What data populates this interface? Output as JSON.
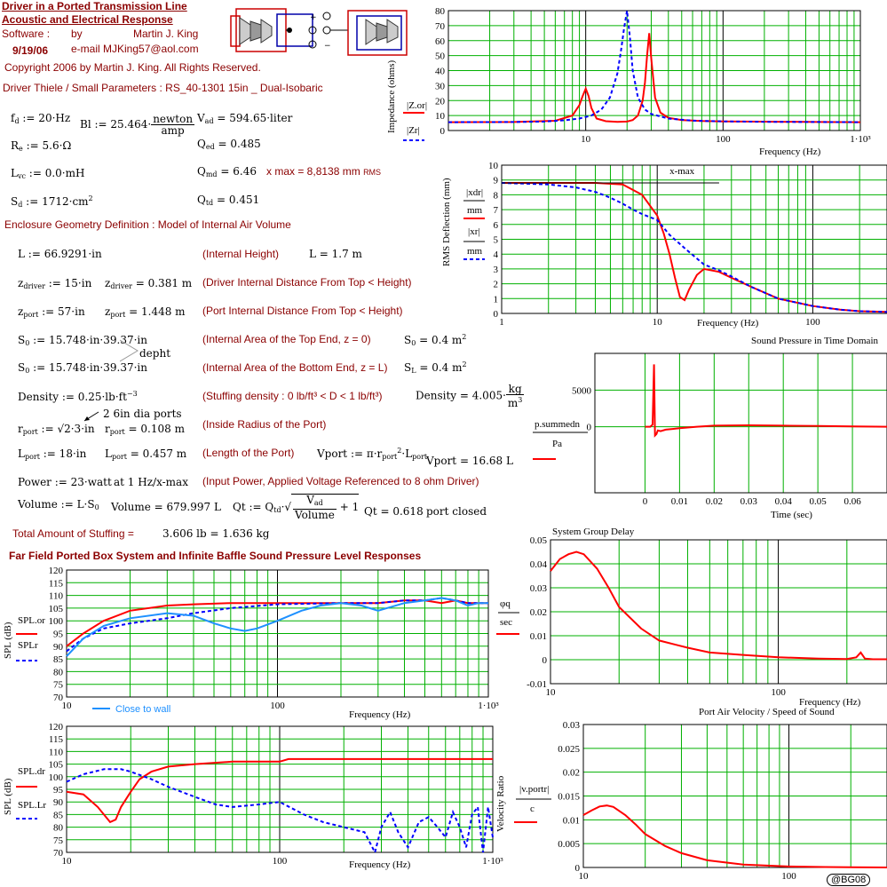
{
  "header": {
    "title1": "Driver in a Ported Transmission Line",
    "title2": "Acoustic and Electrical Response",
    "software_label": "Software :",
    "by_label": "by",
    "author": "Martin J. King",
    "date": "9/19/06",
    "email": "e-mail  MJKing57@aol.com",
    "copyright": "Copyright 2006 by Martin J. King. All Rights Reserved.",
    "driver_params": "Driver Thiele / Small Parameters : RS_40-1301 15in _ Dual-Isobaric"
  },
  "params": {
    "fd": "f",
    "fd_sub": "d",
    "fd_val": " := 20·Hz",
    "bl": "Bl := 25.464·",
    "bl_num": "newton",
    "bl_den": "amp",
    "vad": "V",
    "vad_sub": "ad",
    "vad_val": " = 594.65·liter",
    "re": "R",
    "re_sub": "e",
    "re_val": " := 5.6·Ω",
    "qed": "Q",
    "qed_sub": "ed",
    "qed_val": " = 0.485",
    "lvc": "L",
    "lvc_sub": "vc",
    "lvc_val": " := 0.0·mH",
    "qmd": "Q",
    "qmd_sub": "md",
    "qmd_val": " = 6.46",
    "xmax": "x max = 8,8138 mm",
    "xmax_rms": "RMS",
    "sd": "S",
    "sd_sub": "d",
    "sd_val": " := 1712·cm",
    "sd_sup": "2",
    "qtd": "Q",
    "qtd_sub": "td",
    "qtd_val": " = 0.451"
  },
  "geometry": {
    "heading": "Enclosure Geometry Definition : Model of Internal Air Volume",
    "L_def": "L := 66.9291·in",
    "L_note": "(Internal Height)",
    "L_res": "L = 1.7 m",
    "zd_def": "z",
    "zd_sub": "driver",
    "zd_val": " := 15·in",
    "zd_res": " = 0.381 m",
    "zd_note": "(Driver Internal Distance From Top < Height)",
    "zp_def": "z",
    "zp_sub": "port",
    "zp_val": " := 57·in",
    "zp_res": " = 1.448 m",
    "zp_note": "(Port Internal Distance From Top < Height)",
    "s0_def": "S",
    "s0_sub": "0",
    "s0_val": " := 15.748·in·39.37·in",
    "s0_note": "(Internal Area of the Top End, z = 0)",
    "s0_res": "S",
    "s0_res_sub": "0",
    "s0_res_val": " = 0.4 m",
    "depht": "depht",
    "sl_def": "S",
    "sl_sub": "0",
    "sl_val": " := 15.748·in·39.37·in",
    "sl_note": "(Internal Area of the Bottom End, z = L)",
    "sl_res": "S",
    "sl_res_sub": "L",
    "sl_res_val": " = 0.4 m",
    "dens_def": "Density := 0.25·lb·ft",
    "dens_sup": "−3",
    "dens_note": "(Stuffing density : 0 lb/ft³ < D < 1 lb/ft³)",
    "dens_res": "Density = 4.005·",
    "dens_num": "kg",
    "dens_den": "m",
    "ports_note": "2 6in dia ports",
    "rp_def": "r",
    "rp_sub": "port",
    "rp_val": " := √2·3·in",
    "rp_res": " = 0.108 m",
    "rp_note": "(Inside Radius of the Port)",
    "lp_def": "L",
    "lp_sub": "port",
    "lp_val": " := 18·in",
    "lp_res": " = 0.457 m",
    "lp_note": "(Length of the Port)",
    "vport_def": "Vport := π·r",
    "vport_def2": "·L",
    "vport_res": "Vport = 16.68 L",
    "power_def": "Power := 23·watt",
    "power_at": "at 1 Hz/x-max",
    "power_note": "(Input Power, Applied Voltage Referenced to 8 ohm Driver)",
    "vol_def": "Volume := L·S",
    "vol_res": "Volume = 679.997 L",
    "qt_def": "Qt := Q",
    "qt_num": "V",
    "qt_num_sub": "ad",
    "qt_den": "Volume",
    "qt_plus": " + 1",
    "qt_res": "Qt = 0.618",
    "port_closed": "port closed",
    "stuffing_label": "Total Amount of Stuffing  =",
    "stuffing_val": "3.606 lb = 1.636 kg"
  },
  "spl_heading": "Far Field Ported Box System and Infinite Baffle Sound Pressure Level Responses",
  "badge": "@BG08",
  "plots": {
    "impedance": {
      "ylabel": "Impedance (ohms)",
      "xlabel": "Frequency (Hz)",
      "yticks": [
        "0",
        "10",
        "20",
        "30",
        "40",
        "50",
        "60",
        "70",
        "80"
      ],
      "xticks": [
        "10",
        "100",
        "1·10³"
      ],
      "leg1": "|Z",
      "leg1_sub": ".o",
      "leg1_sub2": "r",
      "leg2": "|Z",
      "leg2_sub": "r",
      "colors": {
        "solid": "#ff0000",
        "dotted": "#0000ff"
      }
    },
    "deflection": {
      "ylabel": "RMS Deflection (mm)",
      "xlabel": "Frequency (Hz)",
      "xmax_label": "x-max",
      "yticks": [
        "0",
        "1",
        "2",
        "3",
        "4",
        "5",
        "6",
        "7",
        "8",
        "9",
        "10"
      ],
      "xticks": [
        "1",
        "10",
        "100"
      ],
      "leg1": "|x",
      "leg1_sub": "d",
      "leg1_sub2": "r",
      "leg1_den": "mm",
      "leg2": "|x",
      "leg2_sub": "r",
      "leg2_den": "mm"
    },
    "time": {
      "title": "Sound Pressure in Time Domain",
      "xlabel": "Time (sec)",
      "yticks": [
        "5000",
        "0"
      ],
      "xticks": [
        "0",
        "0.01",
        "0.02",
        "0.03",
        "0.04",
        "0.05",
        "0.06"
      ],
      "leg_num": "p",
      "leg_num_sub": "summed",
      "leg_num_sub2": "n",
      "leg_den": "Pa"
    },
    "group_delay": {
      "title": "System Group Delay",
      "xlabel": "Frequency (Hz)",
      "yticks": [
        "0.05",
        "0.04",
        "0.03",
        "0.02",
        "0.01",
        "0",
        "-0.01"
      ],
      "xticks": [
        "10",
        "100"
      ],
      "leg_num": "φ",
      "leg_num_sub": "q",
      "leg_den": "sec"
    },
    "spl1": {
      "ylabel": "SPL (dB)",
      "xlabel": "Frequency (Hz)",
      "yticks": [
        "120",
        "115",
        "110",
        "105",
        "100",
        "95",
        "90",
        "85",
        "80",
        "75",
        "70"
      ],
      "xticks": [
        "10",
        "100",
        "1·10³"
      ],
      "leg1": "SPL",
      "leg1_sub": ".o",
      "leg1_sub2": "r",
      "leg2": "SPL",
      "leg2_sub": "r",
      "close_to_wall": "Close to wall"
    },
    "spl2": {
      "ylabel": "SPL (dB)",
      "xlabel": "Frequency (Hz)",
      "yticks": [
        "120",
        "115",
        "110",
        "105",
        "100",
        "95",
        "90",
        "85",
        "80",
        "75",
        "70"
      ],
      "xticks": [
        "10",
        "100",
        "1·10³"
      ],
      "leg1": "SPL",
      "leg1_sub": ".d",
      "leg1_sub2": "r",
      "leg2": "SPL",
      "leg2_sub": ".L",
      "leg2_sub2": "r"
    },
    "port_velocity": {
      "title": "Port Air Velocity / Speed of Sound",
      "ylabel": "Velocity Ratio",
      "yticks": [
        "0.03",
        "0.025",
        "0.02",
        "0.015",
        "0.01",
        "0.005",
        "0"
      ],
      "xticks": [
        "10",
        "100"
      ],
      "leg_num": "|v",
      "leg_num_sub": "port",
      "leg_num_sub2": "r",
      "leg_den": "c"
    }
  },
  "chart_data": [
    {
      "type": "line",
      "title": "",
      "xlabel": "Frequency (Hz)",
      "ylabel": "Impedance (ohms)",
      "xscale": "log",
      "xlim": [
        1,
        1000
      ],
      "ylim": [
        0,
        80
      ],
      "grid": true,
      "series": [
        {
          "name": "|Z.o_r|",
          "style": "solid",
          "color": "#ff0000",
          "x": [
            1,
            3,
            6,
            8,
            9,
            9.5,
            10,
            10.5,
            11,
            12,
            14,
            17,
            20,
            22,
            24,
            26,
            27,
            28,
            29,
            30,
            32,
            35,
            40,
            50,
            70,
            100,
            200,
            500,
            1000
          ],
          "y": [
            5.6,
            5.7,
            6.5,
            10,
            17,
            23,
            28,
            23,
            15,
            8,
            6.2,
            5.8,
            6,
            7,
            10,
            20,
            32,
            50,
            65,
            48,
            22,
            12,
            8.5,
            7,
            6.4,
            6.1,
            5.9,
            5.7,
            5.6
          ]
        },
        {
          "name": "|Z_r|",
          "style": "dotted",
          "color": "#0000ff",
          "x": [
            1,
            3,
            5,
            7,
            9,
            11,
            13,
            15,
            17,
            18,
            19,
            20,
            21,
            22,
            24,
            27,
            30,
            40,
            60,
            100,
            200,
            500,
            1000
          ],
          "y": [
            5.6,
            5.7,
            6,
            6.8,
            8,
            10,
            14,
            22,
            38,
            52,
            68,
            80,
            62,
            40,
            22,
            14,
            11,
            8,
            6.6,
            6.1,
            5.8,
            5.7,
            5.6
          ]
        }
      ]
    },
    {
      "type": "line",
      "title": "",
      "xlabel": "Frequency (Hz)",
      "ylabel": "RMS Deflection (mm)",
      "xscale": "log",
      "xlim": [
        1,
        300
      ],
      "ylim": [
        0,
        10
      ],
      "grid": true,
      "series": [
        {
          "name": "|x.d_r|/mm",
          "style": "solid",
          "color": "#ff0000",
          "x": [
            1,
            2,
            4,
            6,
            8,
            10,
            11,
            12,
            13,
            14,
            15,
            16,
            18,
            20,
            25,
            30,
            40,
            60,
            100,
            150,
            200,
            300
          ],
          "y": [
            8.8,
            8.8,
            8.8,
            8.7,
            8.0,
            6.6,
            5.4,
            4.0,
            2.4,
            1.1,
            0.9,
            1.6,
            2.6,
            3.0,
            2.8,
            2.4,
            1.8,
            1.0,
            0.5,
            0.25,
            0.15,
            0.1
          ]
        },
        {
          "name": "|x_r|/mm",
          "style": "dotted",
          "color": "#0000ff",
          "x": [
            1,
            2,
            3,
            4,
            5,
            6,
            7,
            8,
            10,
            12,
            15,
            20,
            25,
            30,
            40,
            60,
            100,
            150,
            200,
            300
          ],
          "y": [
            8.8,
            8.7,
            8.5,
            8.2,
            7.8,
            7.4,
            7.0,
            6.7,
            6.3,
            5.3,
            4.4,
            3.3,
            2.9,
            2.5,
            1.8,
            1.0,
            0.5,
            0.25,
            0.15,
            0.1
          ]
        }
      ]
    },
    {
      "type": "line",
      "title": "Sound Pressure in Time Domain",
      "xlabel": "Time (sec)",
      "ylabel": "",
      "xlim": [
        -0.0145,
        0.07
      ],
      "ylim": [
        -9000,
        10000
      ],
      "grid": true,
      "series": [
        {
          "name": "p.summed_n/Pa",
          "style": "solid",
          "color": "#ff0000",
          "x": [
            0,
            0.0015,
            0.0022,
            0.0026,
            0.0029,
            0.0033,
            0.0037,
            0.0045,
            0.006,
            0.008,
            0.01,
            0.015,
            0.02,
            0.03,
            0.04,
            0.05,
            0.06,
            0.07
          ],
          "y": [
            0,
            0,
            300,
            8500,
            -1200,
            -1000,
            -500,
            -600,
            -400,
            -300,
            -200,
            0,
            150,
            200,
            150,
            100,
            50,
            0
          ]
        }
      ]
    },
    {
      "type": "line",
      "title": "System Group Delay",
      "xlabel": "Frequency (Hz)",
      "ylabel": "",
      "xscale": "log",
      "xlim": [
        10,
        300
      ],
      "ylim": [
        -0.01,
        0.05
      ],
      "grid": true,
      "series": [
        {
          "name": "φ_q/sec",
          "style": "solid",
          "color": "#ff0000",
          "x": [
            10,
            11,
            12,
            13,
            14,
            16,
            18,
            20,
            25,
            30,
            40,
            50,
            70,
            100,
            150,
            200,
            220,
            230,
            240,
            260,
            300
          ],
          "y": [
            0.037,
            0.042,
            0.044,
            0.045,
            0.044,
            0.038,
            0.03,
            0.022,
            0.013,
            0.008,
            0.005,
            0.003,
            0.002,
            0.001,
            0.0005,
            0.0003,
            0.001,
            0.003,
            0.0005,
            0.0002,
            0.0002
          ]
        }
      ]
    },
    {
      "type": "line",
      "title": "",
      "xlabel": "Frequency (Hz)",
      "ylabel": "SPL (dB)",
      "xscale": "log",
      "xlim": [
        10,
        1000
      ],
      "ylim": [
        70,
        120
      ],
      "grid": true,
      "annotation": "Close to wall",
      "series": [
        {
          "name": "SPL.o_r",
          "style": "solid",
          "color": "#ff0000",
          "x": [
            10,
            12,
            15,
            20,
            30,
            40,
            60,
            100,
            200,
            300,
            400,
            500,
            600,
            700,
            800,
            900,
            1000
          ],
          "y": [
            90,
            95,
            100,
            104,
            106,
            106.5,
            107,
            107,
            107,
            107,
            108,
            108,
            107,
            108,
            107,
            107,
            107
          ]
        },
        {
          "name": "SPL_r",
          "style": "dotted",
          "color": "#0000ff",
          "x": [
            10,
            12,
            15,
            20,
            30,
            40,
            60,
            100,
            200,
            300,
            400,
            500,
            600,
            700,
            800,
            900,
            1000
          ],
          "y": [
            88,
            93,
            97,
            99,
            101,
            103,
            105,
            106.5,
            107,
            107,
            108,
            108,
            109,
            108,
            107,
            107,
            107
          ]
        },
        {
          "name": "Close to wall",
          "style": "solid",
          "color": "#1e90ff",
          "x": [
            10,
            12,
            15,
            20,
            30,
            40,
            50,
            60,
            70,
            80,
            100,
            130,
            160,
            200,
            250,
            300,
            400,
            500,
            600,
            700,
            800,
            900,
            1000
          ],
          "y": [
            86,
            93,
            98,
            101,
            103,
            102,
            99,
            97,
            96,
            97,
            100,
            104,
            106,
            107,
            106,
            104,
            107,
            108,
            109,
            108,
            106,
            107,
            107
          ]
        }
      ]
    },
    {
      "type": "line",
      "title": "",
      "xlabel": "Frequency (Hz)",
      "ylabel": "SPL (dB)",
      "xscale": "log",
      "xlim": [
        10,
        1000
      ],
      "ylim": [
        70,
        120
      ],
      "grid": true,
      "series": [
        {
          "name": "SPL.d_r",
          "style": "solid",
          "color": "#ff0000",
          "x": [
            10,
            12,
            14,
            16,
            17,
            18,
            20,
            22,
            25,
            30,
            40,
            60,
            100,
            110,
            200,
            300,
            500,
            1000
          ],
          "y": [
            94,
            93,
            88,
            82,
            83,
            88,
            94,
            99,
            102,
            104,
            105,
            106,
            106,
            107,
            107,
            107,
            107,
            107
          ]
        },
        {
          "name": "SPL.L_r",
          "style": "dotted",
          "color": "#0000ff",
          "x": [
            10,
            12,
            15,
            18,
            20,
            25,
            30,
            40,
            50,
            60,
            80,
            100,
            130,
            160,
            200,
            250,
            280,
            300,
            330,
            360,
            400,
            450,
            500,
            550,
            600,
            650,
            700,
            750,
            800,
            850,
            900,
            950,
            1000
          ],
          "y": [
            98,
            101,
            103,
            103,
            102,
            99,
            96,
            92,
            89,
            88,
            89,
            90,
            85,
            82,
            80,
            78,
            70,
            80,
            86,
            78,
            72,
            82,
            84,
            80,
            76,
            86,
            80,
            72,
            85,
            88,
            70,
            88,
            76
          ]
        }
      ]
    },
    {
      "type": "line",
      "title": "Port Air Velocity / Speed of Sound",
      "xlabel": "",
      "ylabel": "Velocity Ratio",
      "xscale": "log",
      "xlim": [
        10,
        300
      ],
      "ylim": [
        0,
        0.03
      ],
      "grid": true,
      "series": [
        {
          "name": "|v.port_r|/c",
          "style": "solid",
          "color": "#ff0000",
          "x": [
            10,
            11,
            12,
            13,
            14,
            16,
            18,
            20,
            25,
            30,
            40,
            60,
            100,
            150,
            200,
            300
          ],
          "y": [
            0.011,
            0.012,
            0.0128,
            0.013,
            0.0127,
            0.011,
            0.009,
            0.007,
            0.0045,
            0.003,
            0.0015,
            0.0006,
            0.0002,
            0.0001,
            5e-05,
            0
          ]
        }
      ]
    }
  ]
}
